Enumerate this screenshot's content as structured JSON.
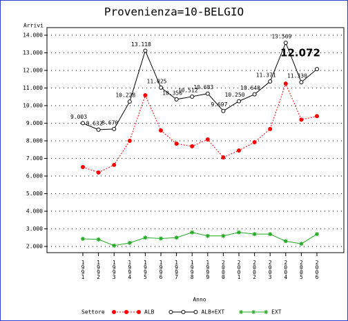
{
  "chart_data": {
    "type": "line",
    "title": "Provenienza=10-BELGIO",
    "y_label": "Arrivi",
    "x_label": "Anno",
    "legend_title": "Settore",
    "categories": [
      "1991",
      "1992",
      "1993",
      "1994",
      "1995",
      "1996",
      "1997",
      "1998",
      "1999",
      "2000",
      "2001",
      "2002",
      "2003",
      "2004",
      "2005",
      "2006"
    ],
    "ylim": [
      2000,
      14000
    ],
    "yticks": [
      {
        "value": 2000,
        "label": "2.000"
      },
      {
        "value": 3000,
        "label": "3.000"
      },
      {
        "value": 4000,
        "label": "4.000"
      },
      {
        "value": 5000,
        "label": "5.000"
      },
      {
        "value": 6000,
        "label": "6.000"
      },
      {
        "value": 7000,
        "label": "7.000"
      },
      {
        "value": 8000,
        "label": "8.000"
      },
      {
        "value": 9000,
        "label": "9.000"
      },
      {
        "value": 10000,
        "label": "10.000"
      },
      {
        "value": 11000,
        "label": "11.000"
      },
      {
        "value": 12000,
        "label": "12.000"
      },
      {
        "value": 13000,
        "label": "13.000"
      },
      {
        "value": 14000,
        "label": "14.000"
      }
    ],
    "grid": true,
    "series": [
      {
        "name": "ALB",
        "color": "#ff0000",
        "marker": "dot",
        "dashed": true,
        "values": [
          6510,
          6200,
          6630,
          8000,
          10590,
          8590,
          7840,
          7690,
          8080,
          7060,
          7450,
          7920,
          8670,
          11250,
          9200,
          9400
        ]
      },
      {
        "name": "ALB+EXT",
        "color": "#000000",
        "marker": "circle",
        "dashed": false,
        "values": [
          9003,
          8632,
          8670,
          10228,
          13118,
          11025,
          10356,
          10512,
          10683,
          9697,
          10250,
          10640,
          11371,
          13569,
          11330,
          12072
        ],
        "value_labels": [
          "9.003",
          "8.632",
          "8.670",
          "10.228",
          "13.118",
          "11.025",
          "10.356",
          "10.512",
          "10.683",
          "9.697",
          "10.250",
          "10.640",
          "11.371",
          "13.569",
          "11.330",
          "12.072"
        ]
      },
      {
        "name": "EXT",
        "color": "#22aa22",
        "marker": "star",
        "dashed": false,
        "values": [
          2430,
          2400,
          2050,
          2200,
          2500,
          2450,
          2500,
          2800,
          2600,
          2600,
          2800,
          2700,
          2700,
          2300,
          2150,
          2700
        ]
      }
    ]
  }
}
